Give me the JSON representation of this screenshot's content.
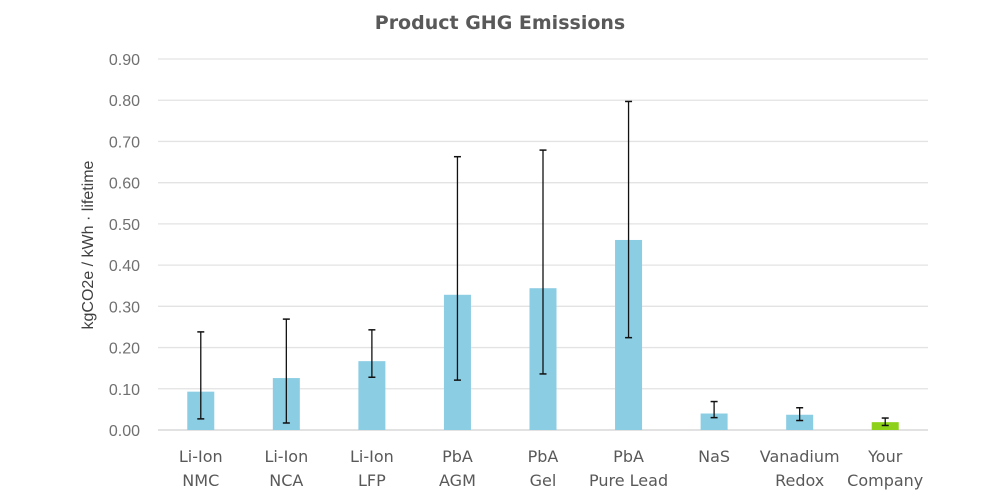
{
  "chart_data": {
    "type": "bar",
    "title": "Product GHG Emissions",
    "xlabel": "",
    "ylabel": "kgCO2e / kWh · lifetime",
    "ylim": [
      0,
      0.9
    ],
    "yticks": [
      "0.00",
      "0.10",
      "0.20",
      "0.30",
      "0.40",
      "0.50",
      "0.60",
      "0.70",
      "0.80",
      "0.90"
    ],
    "grid": true,
    "categories": [
      [
        "Li-Ion",
        "NMC"
      ],
      [
        "Li-Ion",
        "NCA"
      ],
      [
        "Li-Ion",
        "LFP"
      ],
      [
        "PbA",
        "AGM"
      ],
      [
        "PbA",
        "Gel"
      ],
      [
        "PbA",
        "Pure Lead"
      ],
      [
        "NaS"
      ],
      [
        "Vanadium",
        "Redox"
      ],
      [
        "Your",
        "Company"
      ]
    ],
    "values": [
      0.093,
      0.126,
      0.167,
      0.328,
      0.344,
      0.461,
      0.04,
      0.037,
      0.019
    ],
    "error_low": [
      0.027,
      0.017,
      0.128,
      0.121,
      0.136,
      0.224,
      0.03,
      0.023,
      0.011
    ],
    "error_high": [
      0.238,
      0.269,
      0.243,
      0.663,
      0.679,
      0.797,
      0.069,
      0.054,
      0.029
    ],
    "colors": [
      "#8bcde3",
      "#8bcde3",
      "#8bcde3",
      "#8bcde3",
      "#8bcde3",
      "#8bcde3",
      "#8bcde3",
      "#8bcde3",
      "#8ed11a"
    ]
  }
}
